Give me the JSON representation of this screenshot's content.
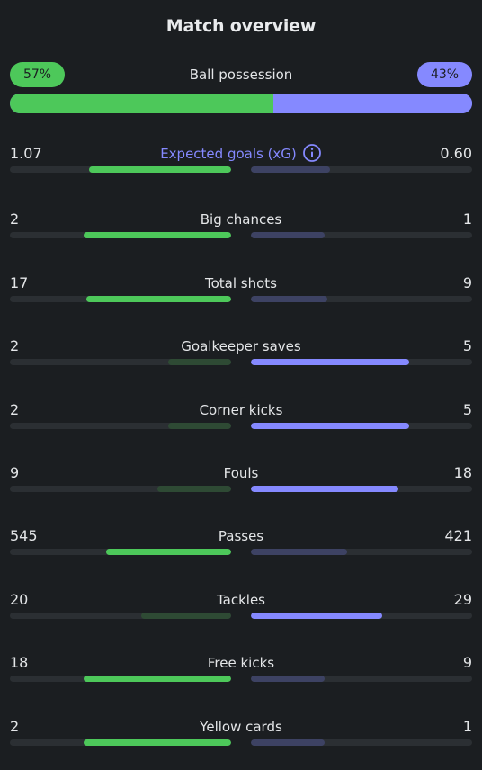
{
  "header": {
    "title": "Match overview"
  },
  "possession": {
    "label": "Ball possession",
    "home_label": "57%",
    "away_label": "43%",
    "home_pct": 57,
    "away_pct": 43
  },
  "stats": [
    {
      "label": "Expected goals (xG)",
      "home": "1.07",
      "away": "0.60",
      "home_value": 1.07,
      "away_value": 0.6,
      "info": true
    },
    {
      "label": "Big chances",
      "home": "2",
      "away": "1",
      "home_value": 2,
      "away_value": 1
    },
    {
      "label": "Total shots",
      "home": "17",
      "away": "9",
      "home_value": 17,
      "away_value": 9
    },
    {
      "label": "Goalkeeper saves",
      "home": "2",
      "away": "5",
      "home_value": 2,
      "away_value": 5
    },
    {
      "label": "Corner kicks",
      "home": "2",
      "away": "5",
      "home_value": 2,
      "away_value": 5
    },
    {
      "label": "Fouls",
      "home": "9",
      "away": "18",
      "home_value": 9,
      "away_value": 18
    },
    {
      "label": "Passes",
      "home": "545",
      "away": "421",
      "home_value": 545,
      "away_value": 421
    },
    {
      "label": "Tackles",
      "home": "20",
      "away": "29",
      "home_value": 20,
      "away_value": 29
    },
    {
      "label": "Free kicks",
      "home": "18",
      "away": "9",
      "home_value": 18,
      "away_value": 9
    },
    {
      "label": "Yellow cards",
      "home": "2",
      "away": "1",
      "home_value": 2,
      "away_value": 1
    }
  ],
  "colors": {
    "home": "#4dc85a",
    "home_dim": "#2e4a34",
    "away": "#8589ff",
    "away_dim": "#3d4263",
    "track": "#2b2f33",
    "background": "#1b1e21"
  },
  "icons": {
    "info": "info-circle-icon"
  }
}
